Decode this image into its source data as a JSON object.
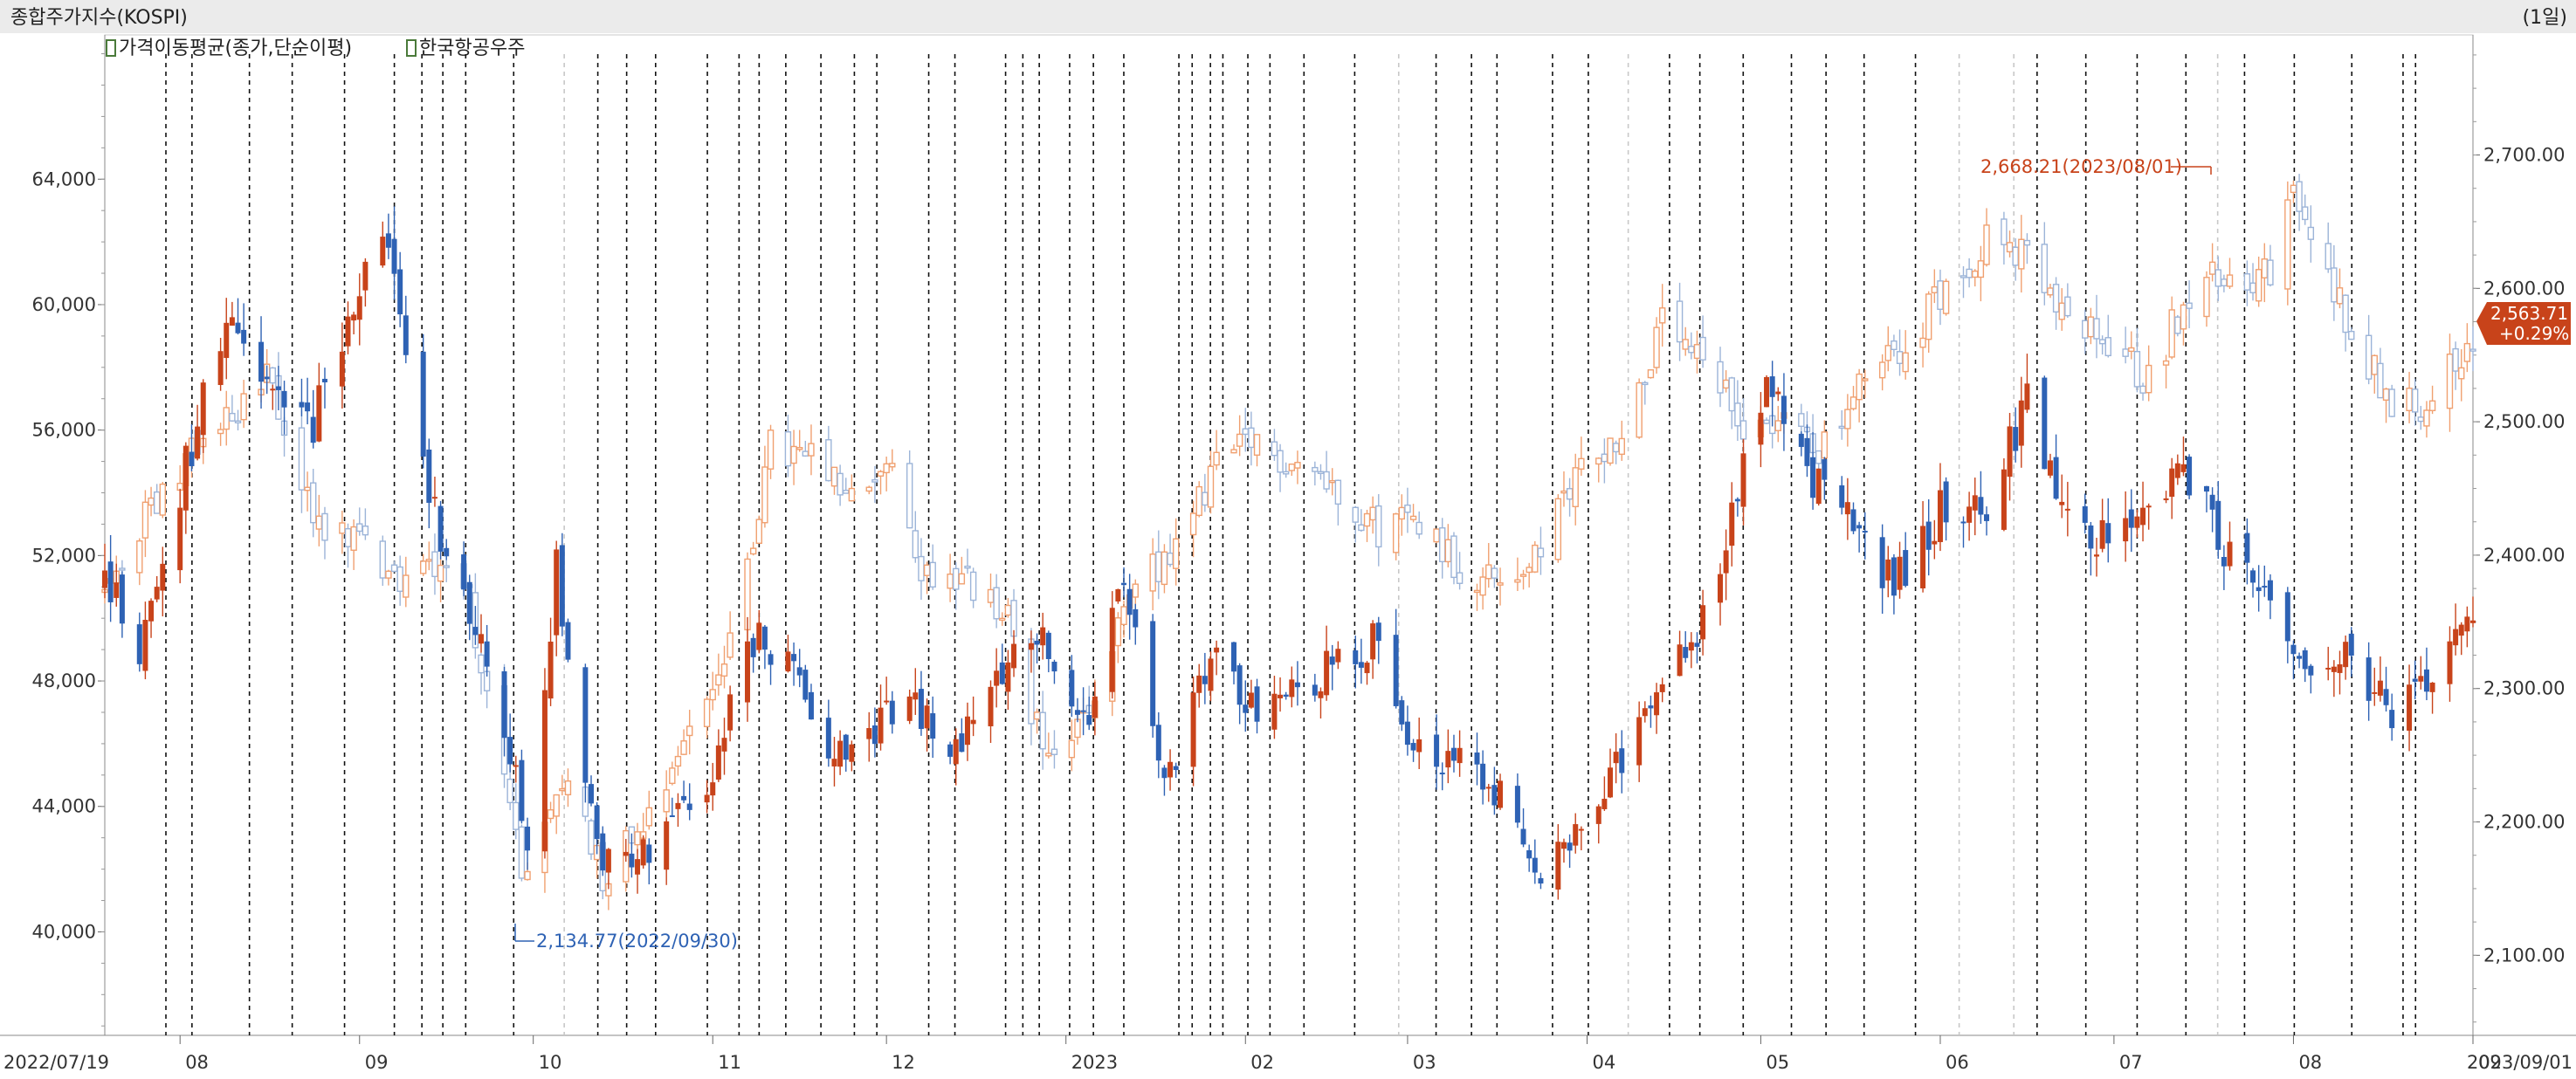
{
  "header": {
    "title": "종합주가지수(KOSPI)",
    "period": "(1일)",
    "legend": [
      {
        "label": "가격이동평균(종가,단순이평)",
        "color": "#4a7a3a"
      },
      {
        "label": "한국항공우주",
        "color": "#4a7a3a"
      }
    ]
  },
  "colors": {
    "up_kospi": "#f0a070",
    "down_kospi": "#9cb4d8",
    "up_stock": "#c8431a",
    "down_stock": "#2e62b4",
    "price_badge": "#c8431a",
    "low_annot": "#2e62b4",
    "high_annot": "#c8431a"
  },
  "annotations": {
    "high_label": "2,668.21(2023/08/01)",
    "low_label": "2,134.77(2022/09/30)"
  },
  "price_badge": {
    "price": "2,563.71",
    "change": "+0.29%"
  },
  "chart_data": {
    "type": "candlestick",
    "x_labels": [
      {
        "label": "2022/07/19",
        "date": "2022-07-19"
      },
      {
        "label": "08",
        "date": "2022-08-01"
      },
      {
        "label": "09",
        "date": "2022-09-01"
      },
      {
        "label": "10",
        "date": "2022-10-01"
      },
      {
        "label": "11",
        "date": "2022-11-01"
      },
      {
        "label": "12",
        "date": "2022-12-01"
      },
      {
        "label": "2023",
        "date": "2023-01-01"
      },
      {
        "label": "02",
        "date": "2023-02-01"
      },
      {
        "label": "03",
        "date": "2023-03-01"
      },
      {
        "label": "04",
        "date": "2023-04-01"
      },
      {
        "label": "05",
        "date": "2023-05-01"
      },
      {
        "label": "06",
        "date": "2023-06-01"
      },
      {
        "label": "07",
        "date": "2023-07-01"
      },
      {
        "label": "08",
        "date": "2023-08-01"
      },
      {
        "label": "09",
        "date": "2023-09-01"
      },
      {
        "label": "2023/09/01",
        "date": "2023-09-01"
      }
    ],
    "x_range": [
      "2022-07-19",
      "2023-09-01"
    ],
    "left_axis": {
      "series": "한국항공우주",
      "ticks": [
        "64,000",
        "60,000",
        "56,000",
        "52,000",
        "48,000",
        "44,000",
        "40,000"
      ],
      "tick_values": [
        64000,
        60000,
        56000,
        52000,
        48000,
        44000,
        40000
      ],
      "range": [
        36700,
        68600
      ]
    },
    "right_axis": {
      "series": "종합주가지수(KOSPI)",
      "ticks": [
        "2,700.00",
        "2,600.00",
        "2,500.00",
        "2,400.00",
        "2,300.00",
        "2,200.00",
        "2,100.00"
      ],
      "tick_values": [
        2700,
        2600,
        2500,
        2400,
        2300,
        2200,
        2100
      ],
      "range": [
        2040,
        2790
      ]
    },
    "kospi_path": [
      [
        "2022-07-19",
        2370
      ],
      [
        "2022-07-29",
        2450
      ],
      [
        "2022-08-08",
        2500
      ],
      [
        "2022-08-16",
        2530
      ],
      [
        "2022-08-24",
        2430
      ],
      [
        "2022-09-01",
        2410
      ],
      [
        "2022-09-08",
        2380
      ],
      [
        "2022-09-15",
        2400
      ],
      [
        "2022-09-20",
        2370
      ],
      [
        "2022-09-23",
        2290
      ],
      [
        "2022-09-30",
        2150
      ],
      [
        "2022-10-07",
        2240
      ],
      [
        "2022-10-13",
        2160
      ],
      [
        "2022-10-21",
        2210
      ],
      [
        "2022-10-28",
        2270
      ],
      [
        "2022-11-04",
        2330
      ],
      [
        "2022-11-11",
        2480
      ],
      [
        "2022-11-18",
        2470
      ],
      [
        "2022-11-25",
        2440
      ],
      [
        "2022-12-01",
        2470
      ],
      [
        "2022-12-07",
        2390
      ],
      [
        "2022-12-15",
        2380
      ],
      [
        "2022-12-22",
        2350
      ],
      [
        "2022-12-29",
        2240
      ],
      [
        "2023-01-06",
        2290
      ],
      [
        "2023-01-13",
        2380
      ],
      [
        "2023-01-20",
        2400
      ],
      [
        "2023-01-27",
        2470
      ],
      [
        "2023-02-02",
        2480
      ],
      [
        "2023-02-10",
        2470
      ],
      [
        "2023-02-17",
        2450
      ],
      [
        "2023-02-24",
        2420
      ],
      [
        "2023-03-03",
        2430
      ],
      [
        "2023-03-10",
        2390
      ],
      [
        "2023-03-17",
        2380
      ],
      [
        "2023-03-24",
        2400
      ],
      [
        "2023-03-31",
        2470
      ],
      [
        "2023-04-07",
        2490
      ],
      [
        "2023-04-14",
        2570
      ],
      [
        "2023-04-21",
        2540
      ],
      [
        "2023-04-28",
        2500
      ],
      [
        "2023-05-05",
        2500
      ],
      [
        "2023-05-12",
        2480
      ],
      [
        "2023-05-19",
        2530
      ],
      [
        "2023-05-26",
        2560
      ],
      [
        "2023-06-02",
        2600
      ],
      [
        "2023-06-09",
        2640
      ],
      [
        "2023-06-16",
        2620
      ],
      [
        "2023-06-23",
        2570
      ],
      [
        "2023-06-30",
        2560
      ],
      [
        "2023-07-07",
        2530
      ],
      [
        "2023-07-14",
        2600
      ],
      [
        "2023-07-21",
        2610
      ],
      [
        "2023-07-28",
        2610
      ],
      [
        "2023-08-01",
        2667
      ],
      [
        "2023-08-09",
        2590
      ],
      [
        "2023-08-17",
        2520
      ],
      [
        "2023-08-22",
        2510
      ],
      [
        "2023-08-28",
        2540
      ],
      [
        "2023-09-01",
        2563
      ]
    ],
    "stock_path": [
      [
        "2022-07-19",
        51200
      ],
      [
        "2022-07-25",
        49000
      ],
      [
        "2022-08-01",
        54000
      ],
      [
        "2022-08-05",
        57000
      ],
      [
        "2022-08-10",
        59000
      ],
      [
        "2022-08-17",
        57000
      ],
      [
        "2022-08-24",
        56000
      ],
      [
        "2022-08-31",
        60500
      ],
      [
        "2022-09-06",
        61500
      ],
      [
        "2022-09-13",
        54000
      ],
      [
        "2022-09-20",
        50000
      ],
      [
        "2022-09-26",
        46500
      ],
      [
        "2022-09-30",
        43000
      ],
      [
        "2022-10-05",
        51500
      ],
      [
        "2022-10-12",
        42500
      ],
      [
        "2022-10-18",
        42000
      ],
      [
        "2022-10-25",
        43500
      ],
      [
        "2022-11-01",
        45000
      ],
      [
        "2022-11-07",
        49500
      ],
      [
        "2022-11-14",
        48500
      ],
      [
        "2022-11-21",
        46000
      ],
      [
        "2022-11-28",
        46200
      ],
      [
        "2022-12-05",
        47500
      ],
      [
        "2022-12-12",
        45500
      ],
      [
        "2022-12-19",
        48000
      ],
      [
        "2022-12-26",
        49800
      ],
      [
        "2023-01-05",
        47000
      ],
      [
        "2023-01-11",
        51000
      ],
      [
        "2023-01-18",
        44500
      ],
      [
        "2023-01-26",
        48800
      ],
      [
        "2023-02-01",
        47200
      ],
      [
        "2023-02-10",
        47800
      ],
      [
        "2023-02-17",
        48500
      ],
      [
        "2023-02-24",
        49500
      ],
      [
        "2023-03-02",
        46000
      ],
      [
        "2023-03-10",
        45500
      ],
      [
        "2023-03-17",
        44500
      ],
      [
        "2023-03-24",
        42000
      ],
      [
        "2023-03-31",
        43000
      ],
      [
        "2023-04-07",
        45500
      ],
      [
        "2023-04-14",
        48500
      ],
      [
        "2023-04-21",
        50000
      ],
      [
        "2023-04-27",
        54000
      ],
      [
        "2023-05-03",
        57500
      ],
      [
        "2023-05-10",
        54500
      ],
      [
        "2023-05-17",
        53000
      ],
      [
        "2023-05-24",
        51000
      ],
      [
        "2023-06-01",
        53500
      ],
      [
        "2023-06-09",
        53500
      ],
      [
        "2023-06-16",
        57000
      ],
      [
        "2023-06-23",
        53000
      ],
      [
        "2023-06-30",
        52500
      ],
      [
        "2023-07-07",
        53500
      ],
      [
        "2023-07-14",
        54500
      ],
      [
        "2023-07-21",
        51800
      ],
      [
        "2023-07-28",
        50500
      ],
      [
        "2023-08-04",
        48000
      ],
      [
        "2023-08-11",
        48800
      ],
      [
        "2023-08-18",
        46800
      ],
      [
        "2023-08-25",
        47800
      ],
      [
        "2023-09-01",
        50000
      ]
    ]
  }
}
